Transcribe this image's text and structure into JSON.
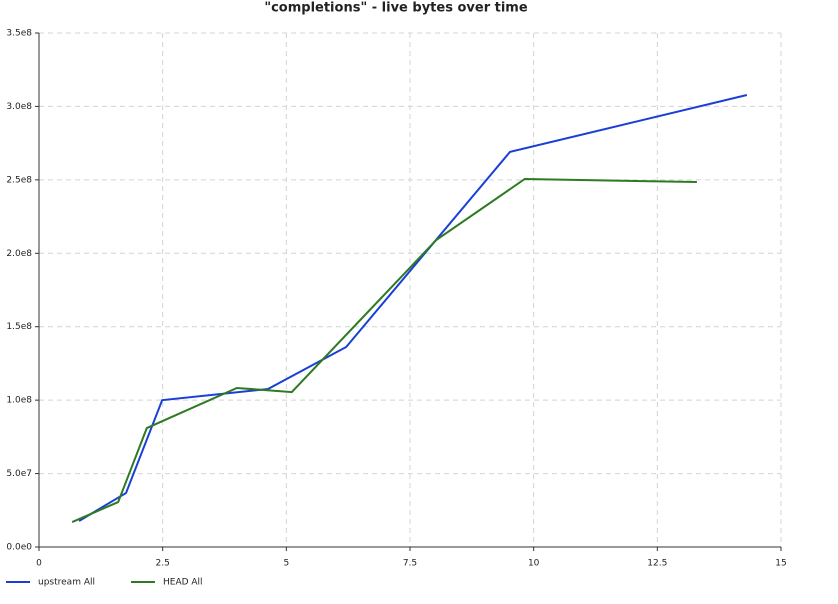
{
  "chart_data": {
    "type": "line",
    "title": "\"completions\" - live bytes over time",
    "xlim": [
      0,
      15
    ],
    "xticks": [
      0,
      2.5,
      5,
      7.5,
      10,
      12.5,
      15
    ],
    "ylim": [
      0,
      350000000
    ],
    "yticks": [
      {
        "value": 0,
        "label": "0.0e0"
      },
      {
        "value": 50000000,
        "label": "5.0e7"
      },
      {
        "value": 100000000,
        "label": "1.0e8"
      },
      {
        "value": 150000000,
        "label": "1.5e8"
      },
      {
        "value": 200000000,
        "label": "2.0e8"
      },
      {
        "value": 250000000,
        "label": "2.5e8"
      },
      {
        "value": 300000000,
        "label": "3.0e8"
      },
      {
        "value": 350000000,
        "label": "3.5e8"
      }
    ],
    "grid": true,
    "legend": "bottom-left",
    "series": [
      {
        "name": "upstream All",
        "color": "#1a3fd6",
        "x": [
          0.81,
          1.76,
          2.49,
          4.63,
          6.21,
          9.52,
          14.31
        ],
        "values": [
          17700000,
          36800000,
          100000000,
          107600000,
          136200000,
          269000000,
          307800000
        ]
      },
      {
        "name": "HEAD All",
        "color": "#2e7a22",
        "x": [
          0.67,
          1.6,
          2.18,
          4.0,
          5.11,
          8.03,
          9.82,
          13.3
        ],
        "values": [
          17000000,
          30600000,
          81000000,
          108300000,
          105500000,
          209000000,
          250600000,
          248500000
        ]
      }
    ]
  }
}
